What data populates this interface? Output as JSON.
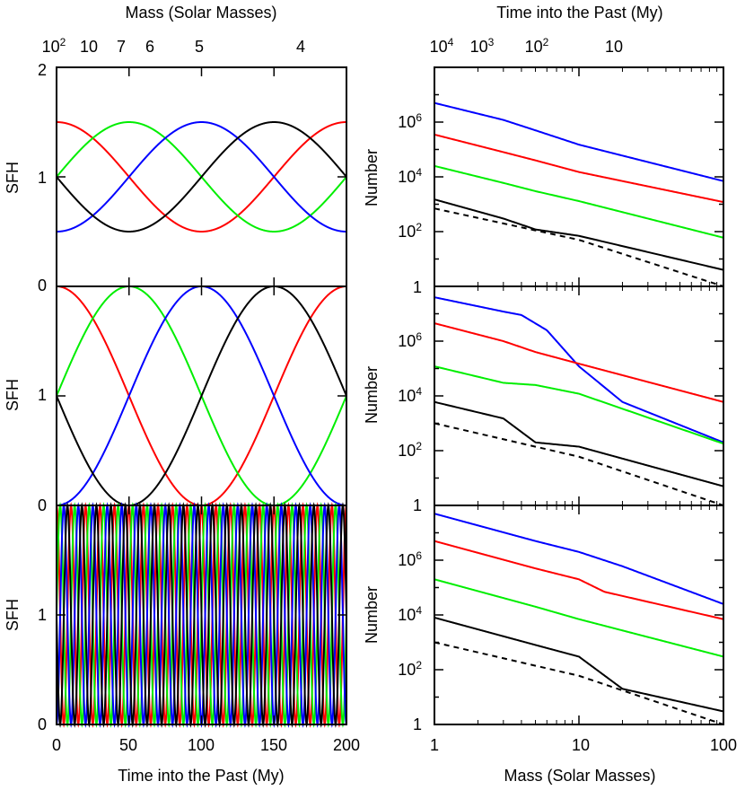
{
  "figure": {
    "top_left_title": "Mass (Solar Masses)",
    "top_right_title": "Time into the Past (My)",
    "bottom_left_xlabel": "Time into the Past (My)",
    "bottom_right_xlabel": "Mass (Solar Masses)"
  },
  "chart_data": [
    {
      "type": "line",
      "panel": "left-1",
      "ylabel": "SFH",
      "xlim": [
        0,
        200
      ],
      "ylim": [
        0,
        2
      ],
      "yticks": [
        "0",
        "1",
        "2"
      ],
      "top_axis_ticks": [
        "10",
        "10",
        "7",
        "6",
        "5",
        "4"
      ],
      "series": [
        {
          "color": "#ff0000",
          "shape": "0.5 amplitude sine, period 200, peak at 0",
          "values_at_x": {
            "0": 1.5,
            "50": 1.0,
            "100": 0.5,
            "150": 1.0,
            "200": 1.5
          }
        },
        {
          "color": "#00ee00",
          "shape": "0.5 amplitude sine, period 200, peak at 50",
          "values_at_x": {
            "0": 1.0,
            "50": 1.5,
            "100": 1.0,
            "150": 0.5,
            "200": 1.0
          }
        },
        {
          "color": "#0000ff",
          "shape": "0.5 amplitude sine, period 200, peak at 100",
          "values_at_x": {
            "0": 0.5,
            "50": 1.0,
            "100": 1.5,
            "150": 1.0,
            "200": 0.5
          }
        },
        {
          "color": "#000000",
          "shape": "0.5 amplitude sine, period 200, peak at 150",
          "values_at_x": {
            "0": 1.0,
            "50": 0.5,
            "100": 1.0,
            "150": 1.5,
            "200": 1.0
          }
        }
      ]
    },
    {
      "type": "line",
      "panel": "left-2",
      "ylabel": "SFH",
      "xlim": [
        0,
        200
      ],
      "ylim": [
        0,
        2
      ],
      "yticks": [
        "0",
        "1",
        "0"
      ],
      "series": [
        {
          "color": "#ff0000",
          "values_at_x": {
            "0": 2.0,
            "50": 1.0,
            "100": 0.0,
            "150": 1.0,
            "200": 2.0
          }
        },
        {
          "color": "#00ee00",
          "values_at_x": {
            "0": 1.0,
            "50": 2.0,
            "100": 1.0,
            "150": 0.0,
            "200": 1.0
          }
        },
        {
          "color": "#0000ff",
          "values_at_x": {
            "0": 0.0,
            "50": 1.0,
            "100": 2.0,
            "150": 1.0,
            "200": 0.0
          }
        },
        {
          "color": "#000000",
          "values_at_x": {
            "0": 1.0,
            "50": 0.0,
            "100": 1.0,
            "150": 2.0,
            "200": 1.0
          }
        }
      ]
    },
    {
      "type": "line",
      "panel": "left-3",
      "ylabel": "SFH",
      "xlim": [
        0,
        200
      ],
      "ylim": [
        0,
        2
      ],
      "yticks": [
        "0",
        "1",
        "0"
      ],
      "xticks": [
        "0",
        "50",
        "100",
        "150",
        "200"
      ],
      "series": [
        {
          "color": "#ff0000",
          "period": 10,
          "amplitude": 1.0,
          "phase_peak_x": 0
        },
        {
          "color": "#00ee00",
          "period": 10,
          "amplitude": 1.0,
          "phase_peak_x": 2.5
        },
        {
          "color": "#0000ff",
          "period": 10,
          "amplitude": 1.0,
          "phase_peak_x": 5
        },
        {
          "color": "#000000",
          "period": 10,
          "amplitude": 1.0,
          "phase_peak_x": 7.5
        }
      ]
    },
    {
      "type": "line",
      "panel": "right-1",
      "scale": "log-log",
      "ylabel": "Number",
      "xlim": [
        1,
        100
      ],
      "top_axis_ticks": [
        "10",
        "10",
        "10",
        "10"
      ],
      "series": [
        {
          "color": "#0000ff",
          "points": [
            [
              1,
              5000000
            ],
            [
              3,
              1200000
            ],
            [
              5,
              500000
            ],
            [
              10,
              150000
            ],
            [
              100,
              7000
            ]
          ]
        },
        {
          "color": "#ff0000",
          "points": [
            [
              1,
              350000
            ],
            [
              3,
              80000
            ],
            [
              5,
              40000
            ],
            [
              10,
              15000
            ],
            [
              100,
              1200
            ]
          ]
        },
        {
          "color": "#00ee00",
          "points": [
            [
              1,
              25000
            ],
            [
              3,
              6000
            ],
            [
              5,
              3000
            ],
            [
              10,
              1300
            ],
            [
              100,
              60
            ]
          ]
        },
        {
          "color": "#000000",
          "points": [
            [
              1,
              1500
            ],
            [
              3,
              300
            ],
            [
              5,
              120
            ],
            [
              10,
              70
            ],
            [
              100,
              4
            ]
          ]
        },
        {
          "color": "#000000",
          "dashed": true,
          "points": [
            [
              1,
              700
            ],
            [
              10,
              50
            ],
            [
              100,
              1
            ]
          ]
        }
      ]
    },
    {
      "type": "line",
      "panel": "right-2",
      "scale": "log-log",
      "ylabel": "Number",
      "xlim": [
        1,
        100
      ],
      "yticks": [
        "1",
        "10",
        "10",
        "10",
        "10"
      ],
      "series": [
        {
          "color": "#0000ff",
          "points": [
            [
              1,
              40000000
            ],
            [
              3,
              12000000
            ],
            [
              4,
              9000000
            ],
            [
              6,
              2500000
            ],
            [
              10,
              120000
            ],
            [
              20,
              6000
            ],
            [
              100,
              200
            ]
          ]
        },
        {
          "color": "#ff0000",
          "points": [
            [
              1,
              4500000
            ],
            [
              3,
              1000000
            ],
            [
              5,
              400000
            ],
            [
              10,
              150000
            ],
            [
              100,
              6000
            ]
          ]
        },
        {
          "color": "#00ee00",
          "points": [
            [
              1,
              120000
            ],
            [
              3,
              30000
            ],
            [
              5,
              25000
            ],
            [
              10,
              12000
            ],
            [
              100,
              180
            ]
          ]
        },
        {
          "color": "#000000",
          "points": [
            [
              1,
              6000
            ],
            [
              3,
              1500
            ],
            [
              5,
              200
            ],
            [
              10,
              140
            ],
            [
              100,
              5
            ]
          ]
        },
        {
          "color": "#000000",
          "dashed": true,
          "points": [
            [
              1,
              1000
            ],
            [
              10,
              60
            ],
            [
              100,
              1
            ]
          ]
        }
      ]
    },
    {
      "type": "line",
      "panel": "right-3",
      "scale": "log-log",
      "ylabel": "Number",
      "xlim": [
        1,
        100
      ],
      "yticks": [
        "1",
        "10",
        "10",
        "10"
      ],
      "xticks": [
        "1",
        "10",
        "100"
      ],
      "series": [
        {
          "color": "#0000ff",
          "points": [
            [
              1,
              50000000
            ],
            [
              5,
              5000000
            ],
            [
              10,
              2000000
            ],
            [
              20,
              600000
            ],
            [
              100,
              25000
            ]
          ]
        },
        {
          "color": "#ff0000",
          "points": [
            [
              1,
              5000000
            ],
            [
              5,
              500000
            ],
            [
              10,
              200000
            ],
            [
              15,
              70000
            ],
            [
              100,
              7000
            ]
          ]
        },
        {
          "color": "#00ee00",
          "points": [
            [
              1,
              200000
            ],
            [
              5,
              20000
            ],
            [
              10,
              7000
            ],
            [
              100,
              300
            ]
          ]
        },
        {
          "color": "#000000",
          "points": [
            [
              1,
              8000
            ],
            [
              5,
              800
            ],
            [
              10,
              300
            ],
            [
              20,
              20
            ],
            [
              100,
              3
            ]
          ]
        },
        {
          "color": "#000000",
          "dashed": true,
          "points": [
            [
              1,
              1000
            ],
            [
              10,
              60
            ],
            [
              100,
              1
            ]
          ]
        }
      ]
    }
  ]
}
